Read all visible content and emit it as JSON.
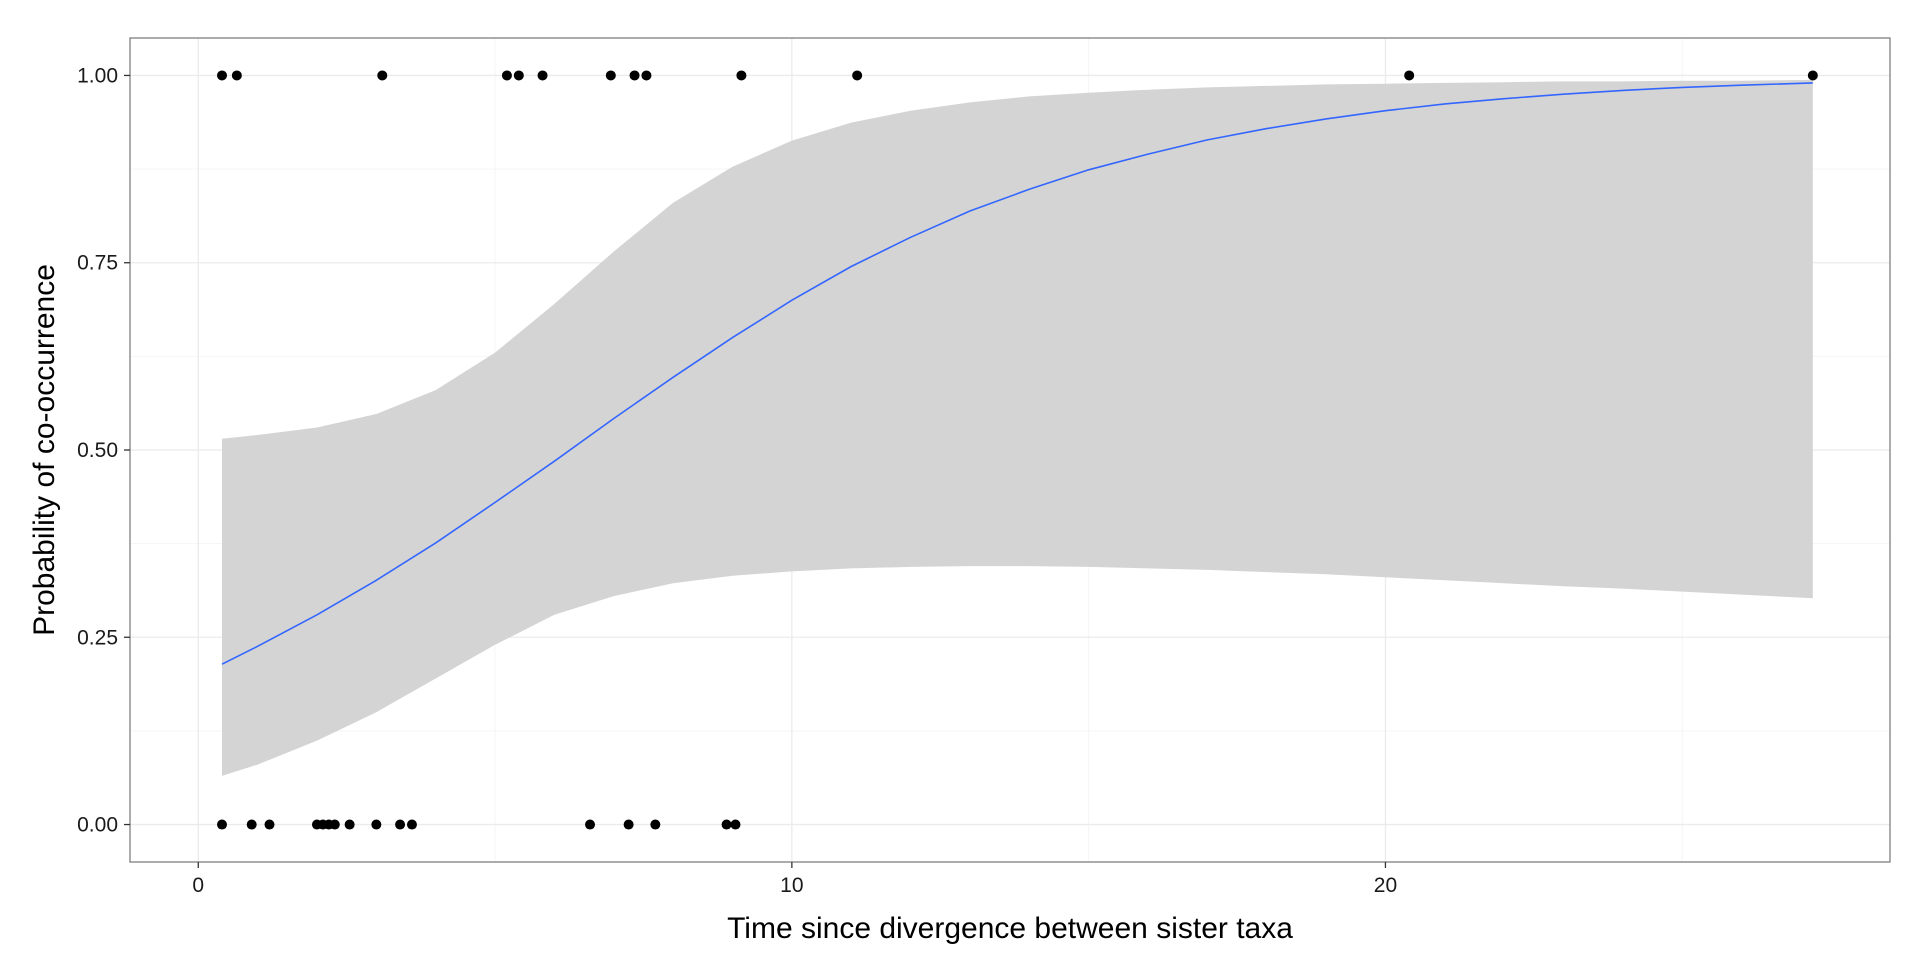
{
  "chart_data": {
    "type": "scatter",
    "title": "",
    "xlabel": "Time since divergence between sister taxa",
    "ylabel": "Probability of co-occurrence",
    "xlim": [
      -1.15,
      28.5
    ],
    "ylim": [
      -0.05,
      1.05
    ],
    "x_ticks": [
      0,
      10,
      20
    ],
    "x_tick_labels": [
      "0",
      "10",
      "20"
    ],
    "y_ticks": [
      0,
      0.25,
      0.5,
      0.75,
      1
    ],
    "y_tick_labels": [
      "0.00",
      "0.25",
      "0.50",
      "0.75",
      "1.00"
    ],
    "grid": true,
    "legend": "none",
    "colors": {
      "points": "#000000",
      "fit_line": "#3366ff",
      "ribbon": "#d4d4d4",
      "grid": "#ebebeb",
      "panel_border": "#7f7f7f"
    },
    "points": [
      {
        "x": 0.4,
        "y": 1
      },
      {
        "x": 0.65,
        "y": 1
      },
      {
        "x": 3.1,
        "y": 1
      },
      {
        "x": 5.2,
        "y": 1
      },
      {
        "x": 5.4,
        "y": 1
      },
      {
        "x": 5.8,
        "y": 1
      },
      {
        "x": 6.95,
        "y": 1
      },
      {
        "x": 7.35,
        "y": 1
      },
      {
        "x": 7.55,
        "y": 1
      },
      {
        "x": 9.15,
        "y": 1
      },
      {
        "x": 11.1,
        "y": 1
      },
      {
        "x": 20.4,
        "y": 1
      },
      {
        "x": 27.2,
        "y": 1
      },
      {
        "x": 0.4,
        "y": 0
      },
      {
        "x": 0.9,
        "y": 0
      },
      {
        "x": 1.2,
        "y": 0
      },
      {
        "x": 2.0,
        "y": 0
      },
      {
        "x": 2.1,
        "y": 0
      },
      {
        "x": 2.2,
        "y": 0
      },
      {
        "x": 2.3,
        "y": 0
      },
      {
        "x": 2.55,
        "y": 0
      },
      {
        "x": 3.0,
        "y": 0
      },
      {
        "x": 3.4,
        "y": 0
      },
      {
        "x": 3.6,
        "y": 0
      },
      {
        "x": 6.6,
        "y": 0
      },
      {
        "x": 7.25,
        "y": 0
      },
      {
        "x": 7.7,
        "y": 0
      },
      {
        "x": 8.9,
        "y": 0
      },
      {
        "x": 9.05,
        "y": 0
      }
    ],
    "fit": {
      "x": [
        0.4,
        1,
        2,
        3,
        4,
        5,
        6,
        7,
        8,
        9,
        10,
        11,
        12,
        13,
        14,
        15,
        16,
        17,
        18,
        19,
        20,
        21,
        22,
        23,
        24,
        25,
        26,
        27.2
      ],
      "y": [
        0.214,
        0.238,
        0.28,
        0.326,
        0.376,
        0.43,
        0.485,
        0.542,
        0.597,
        0.65,
        0.7,
        0.745,
        0.784,
        0.819,
        0.848,
        0.874,
        0.895,
        0.914,
        0.929,
        0.942,
        0.953,
        0.962,
        0.969,
        0.975,
        0.98,
        0.984,
        0.987,
        0.99
      ],
      "lower": [
        0.065,
        0.08,
        0.112,
        0.15,
        0.195,
        0.24,
        0.28,
        0.305,
        0.322,
        0.332,
        0.338,
        0.342,
        0.344,
        0.345,
        0.345,
        0.344,
        0.342,
        0.34,
        0.337,
        0.334,
        0.33,
        0.326,
        0.322,
        0.318,
        0.315,
        0.311,
        0.307,
        0.302
      ],
      "upper": [
        0.515,
        0.52,
        0.53,
        0.548,
        0.58,
        0.63,
        0.695,
        0.765,
        0.83,
        0.878,
        0.913,
        0.937,
        0.953,
        0.964,
        0.972,
        0.977,
        0.981,
        0.984,
        0.986,
        0.988,
        0.989,
        0.99,
        0.991,
        0.992,
        0.992,
        0.993,
        0.993,
        0.994
      ]
    }
  }
}
